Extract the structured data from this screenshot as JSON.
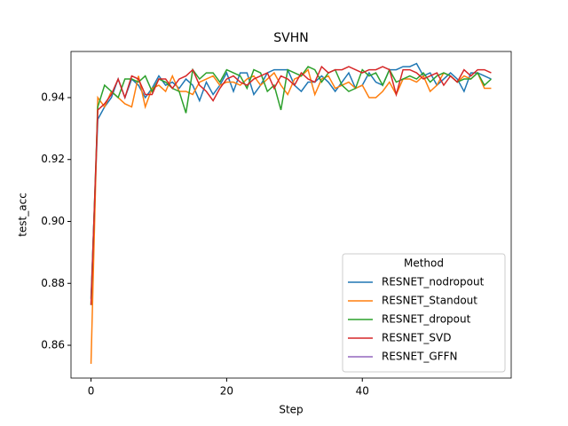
{
  "chart_data": {
    "type": "line",
    "title": "SVHN",
    "x_label": "Step",
    "y_label": "test_acc",
    "x": [
      0,
      1,
      2,
      3,
      4,
      5,
      6,
      7,
      8,
      9,
      10,
      11,
      12,
      13,
      14,
      15,
      16,
      17,
      18,
      19,
      20,
      21,
      22,
      23,
      24,
      25,
      26,
      27,
      28,
      29,
      30,
      31,
      32,
      33,
      34,
      35,
      36,
      37,
      38,
      39,
      40,
      41,
      42,
      43,
      44,
      45,
      46,
      47,
      48,
      49,
      50,
      51,
      52,
      53,
      54,
      55,
      56,
      57,
      58,
      59
    ],
    "series": [
      {
        "name": "RESNET_nodropout",
        "color": "#1f77b4",
        "values": [
          0.875,
          0.933,
          0.937,
          0.94,
          0.946,
          0.94,
          0.946,
          0.944,
          0.94,
          0.943,
          0.947,
          0.944,
          0.945,
          0.943,
          0.946,
          0.944,
          0.939,
          0.945,
          0.941,
          0.944,
          0.948,
          0.942,
          0.948,
          0.948,
          0.941,
          0.944,
          0.948,
          0.949,
          0.949,
          0.949,
          0.944,
          0.942,
          0.945,
          0.945,
          0.947,
          0.945,
          0.942,
          0.945,
          0.948,
          0.943,
          0.944,
          0.948,
          0.945,
          0.944,
          0.949,
          0.949,
          0.95,
          0.95,
          0.951,
          0.947,
          0.948,
          0.944,
          0.946,
          0.948,
          0.946,
          0.942,
          0.948,
          0.948,
          0.947,
          0.946
        ]
      },
      {
        "name": "RESNET_Standout",
        "color": "#ff7f0e",
        "values": [
          0.854,
          0.94,
          0.937,
          0.942,
          0.94,
          0.938,
          0.937,
          0.947,
          0.937,
          0.943,
          0.944,
          0.942,
          0.947,
          0.942,
          0.942,
          0.941,
          0.945,
          0.946,
          0.947,
          0.944,
          0.945,
          0.945,
          0.944,
          0.946,
          0.947,
          0.944,
          0.946,
          0.948,
          0.944,
          0.941,
          0.946,
          0.947,
          0.949,
          0.941,
          0.946,
          0.947,
          0.943,
          0.944,
          0.945,
          0.943,
          0.944,
          0.94,
          0.94,
          0.942,
          0.945,
          0.941,
          0.946,
          0.946,
          0.945,
          0.947,
          0.942,
          0.944,
          0.948,
          0.947,
          0.945,
          0.947,
          0.946,
          0.948,
          0.943,
          0.943
        ]
      },
      {
        "name": "RESNET_dropout",
        "color": "#2ca02c",
        "values": [
          0.873,
          0.937,
          0.944,
          0.942,
          0.94,
          0.946,
          0.946,
          0.945,
          0.947,
          0.942,
          0.946,
          0.945,
          0.943,
          0.942,
          0.935,
          0.949,
          0.946,
          0.948,
          0.948,
          0.945,
          0.949,
          0.948,
          0.947,
          0.943,
          0.949,
          0.948,
          0.942,
          0.944,
          0.936,
          0.949,
          0.948,
          0.947,
          0.95,
          0.949,
          0.945,
          0.948,
          0.949,
          0.944,
          0.942,
          0.943,
          0.949,
          0.947,
          0.948,
          0.944,
          0.949,
          0.945,
          0.946,
          0.947,
          0.946,
          0.948,
          0.945,
          0.947,
          0.948,
          0.947,
          0.945,
          0.946,
          0.946,
          0.948,
          0.944,
          0.946
        ]
      },
      {
        "name": "RESNET_SVD",
        "color": "#d62728",
        "values": [
          0.873,
          0.936,
          0.938,
          0.941,
          0.946,
          0.94,
          0.947,
          0.946,
          0.941,
          0.941,
          0.946,
          0.946,
          0.943,
          0.946,
          0.947,
          0.949,
          0.944,
          0.942,
          0.939,
          0.943,
          0.946,
          0.947,
          0.945,
          0.944,
          0.946,
          0.947,
          0.948,
          0.943,
          0.947,
          0.946,
          0.944,
          0.948,
          0.946,
          0.945,
          0.95,
          0.948,
          0.949,
          0.949,
          0.95,
          0.949,
          0.948,
          0.949,
          0.949,
          0.95,
          0.949,
          0.941,
          0.949,
          0.949,
          0.948,
          0.946,
          0.947,
          0.948,
          0.944,
          0.947,
          0.945,
          0.949,
          0.947,
          0.949,
          0.949,
          0.948
        ]
      },
      {
        "name": "RESNET_GFFN",
        "color": "#9467bd",
        "values": [
          null,
          null,
          null,
          null,
          null,
          null,
          null,
          null,
          null,
          null,
          null,
          null,
          null,
          null,
          null,
          null,
          null,
          null,
          null,
          null,
          null,
          null,
          null,
          null,
          null,
          null,
          null,
          null,
          null,
          null,
          null,
          null,
          null,
          null,
          null,
          null,
          null,
          null,
          null,
          null,
          null,
          null,
          null,
          null,
          null,
          null,
          null,
          null,
          null,
          null,
          null,
          null,
          null,
          null,
          null,
          null,
          null,
          null,
          null,
          null
        ]
      }
    ],
    "xlim": [
      -2.95,
      61.95
    ],
    "xticks": [
      0,
      20,
      40
    ],
    "ylim": [
      0.8494,
      0.9549
    ],
    "yticks": [
      0.86,
      0.88,
      {
        "value": 0.9,
        "label": "0.90"
      },
      0.92,
      0.94
    ],
    "legend_title": "Method",
    "legend_position": "lower right",
    "grid": false
  }
}
